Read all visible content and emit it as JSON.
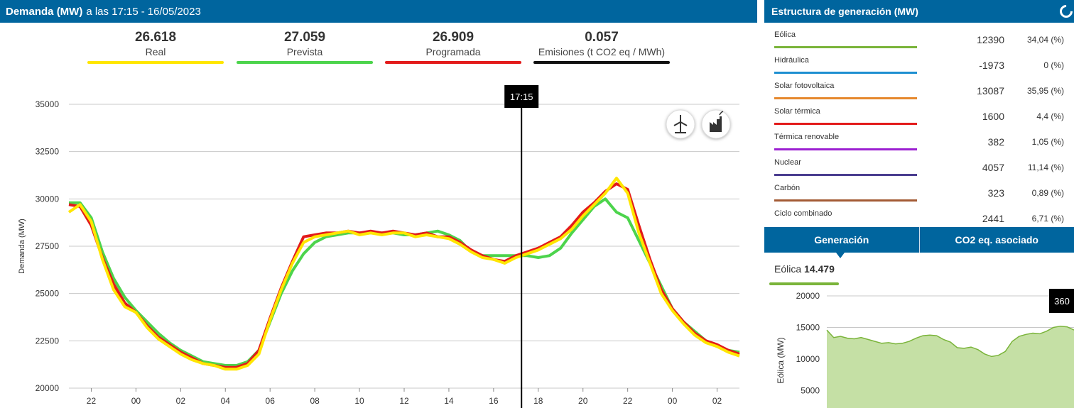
{
  "header": {
    "title": "Demanda (MW)",
    "subtitle_prefix": "a las",
    "time": "17:15",
    "date": "16/05/2023",
    "bg_color": "#00659e"
  },
  "kpis": [
    {
      "value": "26.618",
      "label": "Real",
      "color": "#ffe600"
    },
    {
      "value": "27.059",
      "label": "Prevista",
      "color": "#4cd44c"
    },
    {
      "value": "26.909",
      "label": "Programada",
      "color": "#e31b1b"
    },
    {
      "value": "0.057",
      "label": "Emisiones (t CO2 eq / MWh)",
      "color": "#111111"
    }
  ],
  "chart_controls": {
    "wind_icon": "wind-turbine-icon",
    "factory_icon": "factory-icon"
  },
  "chart_data": {
    "type": "line",
    "ylabel": "Demanda (MW)",
    "ylim": [
      20000,
      35000
    ],
    "yticks": [
      20000,
      22500,
      25000,
      27500,
      30000,
      32500,
      35000
    ],
    "xticks": [
      {
        "t": 22,
        "label": "22"
      },
      {
        "t": 24,
        "label": "00"
      },
      {
        "t": 26,
        "label": "02"
      },
      {
        "t": 28,
        "label": "04"
      },
      {
        "t": 30,
        "label": "06"
      },
      {
        "t": 32,
        "label": "08"
      },
      {
        "t": 34,
        "label": "10"
      },
      {
        "t": 36,
        "label": "12"
      },
      {
        "t": 38,
        "label": "14"
      },
      {
        "t": 40,
        "label": "16"
      },
      {
        "t": 42,
        "label": "18"
      },
      {
        "t": 44,
        "label": "20"
      },
      {
        "t": 46,
        "label": "22"
      },
      {
        "t": 48,
        "label": "00"
      },
      {
        "t": 50,
        "label": "02"
      }
    ],
    "xlim": [
      21,
      51
    ],
    "cursor": {
      "t": 41.25,
      "label": "17:15"
    },
    "series": [
      {
        "name": "Prevista",
        "color": "#4cd44c",
        "t": [
          21,
          21.5,
          22,
          22.5,
          23,
          23.5,
          24,
          24.5,
          25,
          25.5,
          26,
          26.5,
          27,
          27.5,
          28,
          28.5,
          29,
          29.5,
          30,
          30.5,
          31,
          31.5,
          32,
          32.5,
          33,
          33.5,
          34,
          34.5,
          35,
          35.5,
          36,
          36.5,
          37,
          37.5,
          38,
          38.5,
          39,
          39.5,
          40,
          40.5,
          41,
          41.5,
          42,
          42.5,
          43,
          43.5,
          44,
          44.5,
          45,
          45.5,
          46,
          46.5,
          47,
          47.5,
          48,
          48.5,
          49,
          49.5,
          50,
          50.5,
          51
        ],
        "v": [
          29800,
          29800,
          29000,
          27200,
          25800,
          24800,
          24100,
          23500,
          22900,
          22400,
          22000,
          21700,
          21400,
          21300,
          21200,
          21200,
          21400,
          22000,
          23500,
          25000,
          26200,
          27100,
          27700,
          28000,
          28100,
          28200,
          28200,
          28200,
          28200,
          28200,
          28100,
          28100,
          28200,
          28300,
          28100,
          27800,
          27200,
          27000,
          27000,
          27000,
          27000,
          27000,
          26900,
          27000,
          27400,
          28200,
          28900,
          29600,
          30000,
          29300,
          29000,
          27800,
          26600,
          25400,
          24200,
          23500,
          23000,
          22500,
          22200,
          22000,
          21900
        ]
      },
      {
        "name": "Programada",
        "color": "#e31b1b",
        "t": [
          21,
          21.5,
          22,
          22.5,
          23,
          23.5,
          24,
          24.5,
          25,
          25.5,
          26,
          26.5,
          27,
          27.5,
          28,
          28.5,
          29,
          29.5,
          30,
          30.5,
          31,
          31.5,
          32,
          32.5,
          33,
          33.5,
          34,
          34.5,
          35,
          35.5,
          36,
          36.5,
          37,
          37.5,
          38,
          38.5,
          39,
          39.5,
          40,
          40.5,
          41,
          41.5,
          42,
          42.5,
          43,
          43.5,
          44,
          44.5,
          45,
          45.5,
          46,
          46.5,
          47,
          47.5,
          48,
          48.5,
          49,
          49.5,
          50,
          50.5,
          51
        ],
        "v": [
          29700,
          29600,
          28600,
          26900,
          25500,
          24500,
          24000,
          23300,
          22700,
          22300,
          21900,
          21600,
          21300,
          21200,
          21100,
          21100,
          21300,
          22000,
          23700,
          25300,
          26700,
          28000,
          28100,
          28200,
          28200,
          28300,
          28200,
          28300,
          28200,
          28300,
          28200,
          28100,
          28200,
          28000,
          28000,
          27700,
          27300,
          27000,
          26800,
          26700,
          27000,
          27200,
          27400,
          27700,
          28000,
          28600,
          29300,
          29800,
          30400,
          30800,
          30500,
          28600,
          26800,
          25200,
          24200,
          23500,
          22900,
          22500,
          22300,
          22000,
          21800
        ]
      },
      {
        "name": "Real",
        "color": "#ffe600",
        "t": [
          21,
          21.5,
          22,
          22.5,
          23,
          23.5,
          24,
          24.5,
          25,
          25.5,
          26,
          26.5,
          27,
          27.5,
          28,
          28.5,
          29,
          29.5,
          30,
          30.5,
          31,
          31.5,
          32,
          32.5,
          33,
          33.5,
          34,
          34.5,
          35,
          35.5,
          36,
          36.5,
          37,
          37.5,
          38,
          38.5,
          39,
          39.5,
          40,
          40.5,
          41,
          41.5,
          42,
          42.5,
          43,
          43.5,
          44,
          44.5,
          45,
          45.5,
          46,
          46.5,
          47,
          47.5,
          48,
          48.5,
          49,
          49.5,
          50,
          50.5,
          51
        ],
        "v": [
          29300,
          29700,
          28800,
          26800,
          25200,
          24300,
          24000,
          23200,
          22600,
          22200,
          21800,
          21500,
          21300,
          21200,
          21000,
          21000,
          21200,
          21800,
          23600,
          25200,
          26600,
          27700,
          28000,
          28100,
          28200,
          28300,
          28100,
          28200,
          28100,
          28200,
          28200,
          28000,
          28100,
          28000,
          27900,
          27600,
          27200,
          26900,
          26800,
          26600,
          26900,
          27100,
          27300,
          27600,
          27900,
          28400,
          29100,
          29700,
          30300,
          31100,
          30300,
          28200,
          26600,
          25000,
          24100,
          23400,
          22800,
          22400,
          22200,
          21900,
          21700
        ]
      }
    ]
  },
  "generation": {
    "title": "Estructura de generación (MW)",
    "rows": [
      {
        "name": "Eólica",
        "mw": "12390",
        "pct": "34,04 (%)",
        "color": "#7ab43a"
      },
      {
        "name": "Hidráulica",
        "mw": "-1973",
        "pct": "0 (%)",
        "color": "#1d8fd1"
      },
      {
        "name": "Solar fotovoltaica",
        "mw": "13087",
        "pct": "35,95 (%)",
        "color": "#e6882d"
      },
      {
        "name": "Solar térmica",
        "mw": "1600",
        "pct": "4,4 (%)",
        "color": "#e31b1b"
      },
      {
        "name": "Térmica renovable",
        "mw": "382",
        "pct": "1,05 (%)",
        "color": "#9b1fd1"
      },
      {
        "name": "Nuclear",
        "mw": "4057",
        "pct": "11,14 (%)",
        "color": "#4a3d8f"
      },
      {
        "name": "Carbón",
        "mw": "323",
        "pct": "0,89 (%)",
        "color": "#a35a34"
      },
      {
        "name": "Ciclo combinado",
        "mw": "2441",
        "pct": "6,71 (%)",
        "color": "#ffffff"
      }
    ],
    "tabs": [
      "Generación",
      "CO2 eq. asociado"
    ],
    "selected_label": "Eólica",
    "selected_value": "14.479",
    "tooltip": "360"
  },
  "side_chart_data": {
    "type": "area",
    "ylabel": "Eólica (MW)",
    "ylim": [
      0,
      20000
    ],
    "yticks": [
      5000,
      10000,
      15000,
      20000
    ],
    "color": "#7ab43a",
    "fill": "#c5e0a5",
    "values": [
      14600,
      13400,
      13600,
      13300,
      13200,
      13400,
      13100,
      12800,
      12500,
      12600,
      12400,
      12500,
      12800,
      13300,
      13700,
      13800,
      13700,
      13100,
      12700,
      11800,
      11700,
      11900,
      11500,
      10800,
      10400,
      10600,
      11200,
      12800,
      13600,
      13900,
      14100,
      14000,
      14400,
      15000,
      15200,
      15100,
      14600
    ]
  }
}
